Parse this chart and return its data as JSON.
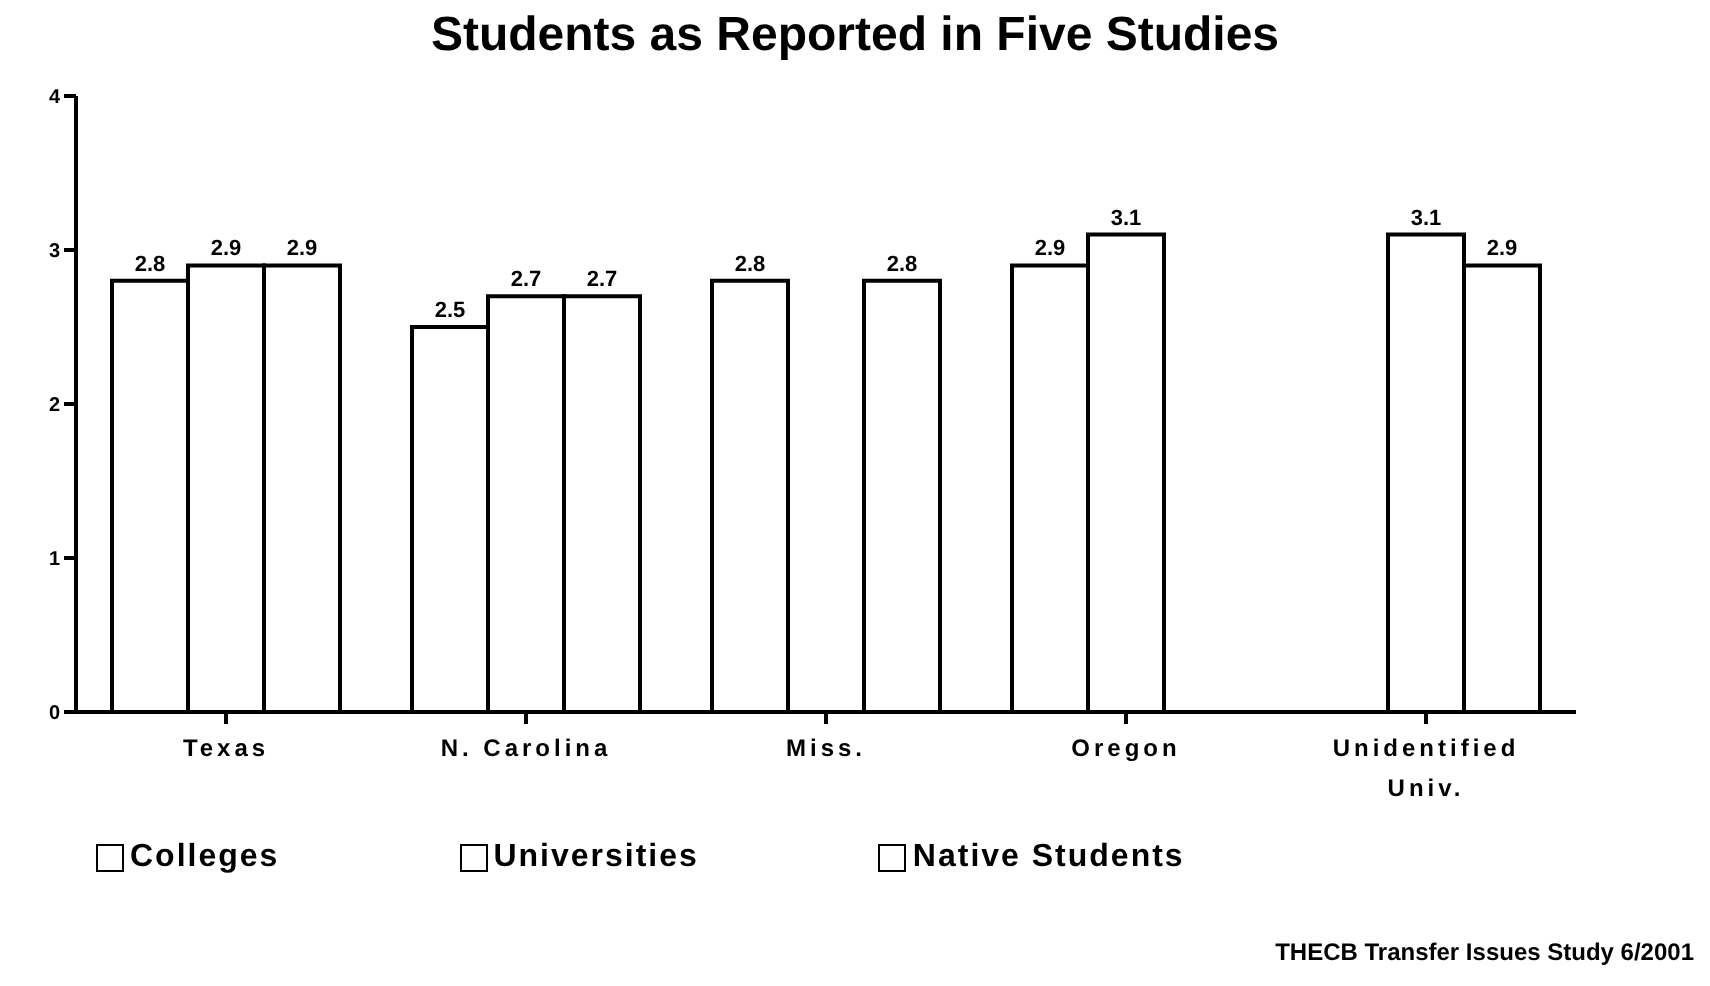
{
  "chart_data": {
    "type": "bar",
    "title": "Students as Reported in Five Studies",
    "categories": [
      "Texas",
      "N. Carolina",
      "Miss.",
      "Oregon",
      "Unidentified Univ."
    ],
    "series": [
      {
        "name": "Colleges",
        "color": "#ffffff",
        "values": [
          2.8,
          2.5,
          2.8,
          2.9,
          null
        ]
      },
      {
        "name": "Universities",
        "color": "#ffffff",
        "values": [
          2.9,
          2.7,
          null,
          3.1,
          3.1
        ]
      },
      {
        "name": "Native Students",
        "color": "#ffffff",
        "values": [
          2.9,
          2.7,
          2.8,
          null,
          2.9
        ]
      }
    ],
    "ylim": [
      0,
      4
    ],
    "yticks": [
      0,
      1,
      2,
      3,
      4
    ],
    "grid": false,
    "legend": "bottom",
    "data_labels": true,
    "annotations": [
      "THECB Transfer Issues Study 6/2001"
    ]
  }
}
